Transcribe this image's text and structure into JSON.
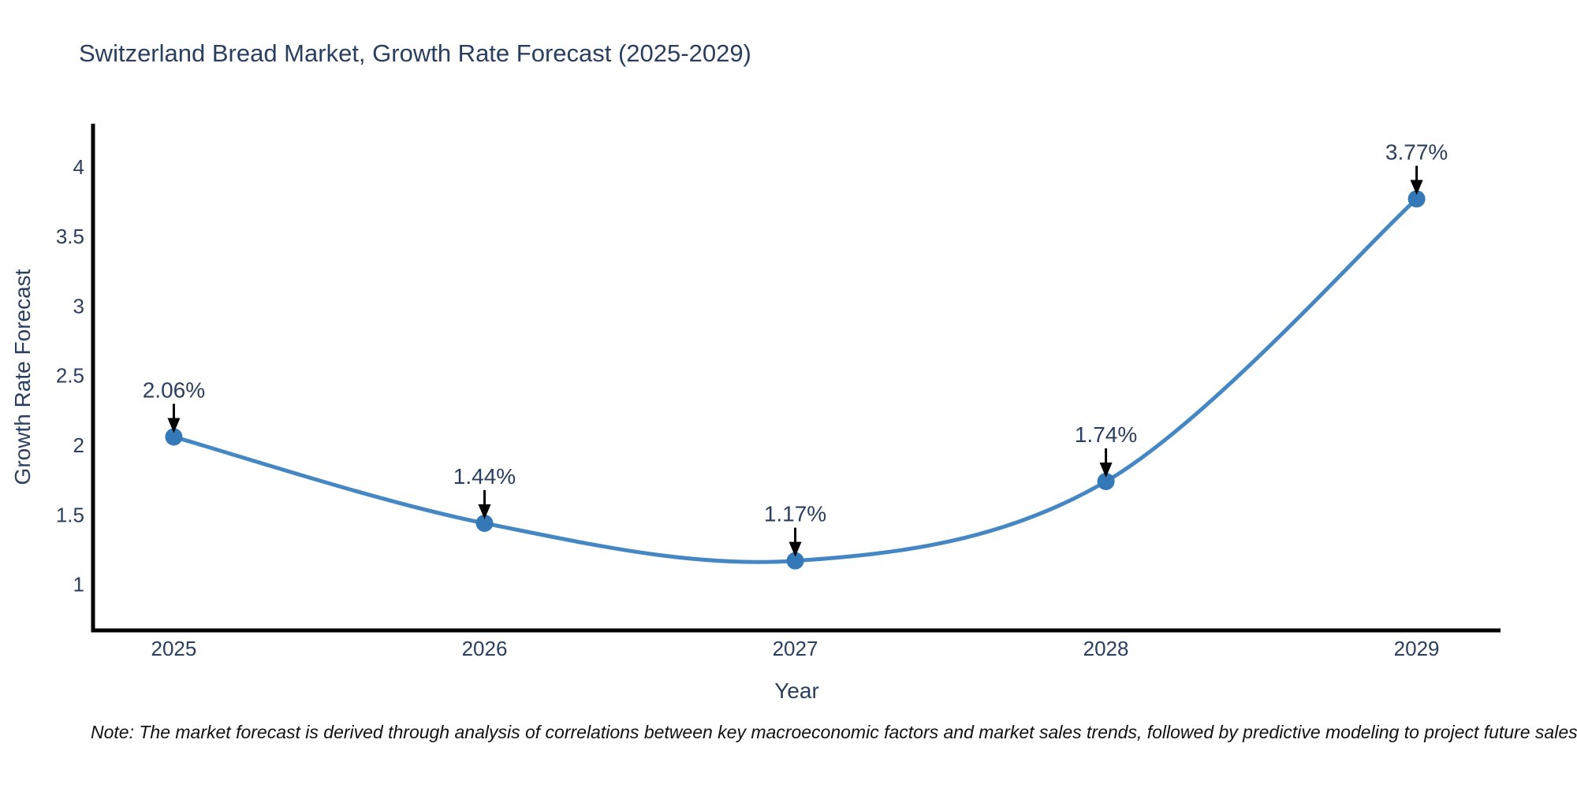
{
  "chart_data": {
    "type": "line",
    "title": "Switzerland Bread Market, Growth Rate Forecast (2025-2029)",
    "xlabel": "Year",
    "ylabel": "Growth Rate Forecast",
    "x": [
      2025,
      2026,
      2027,
      2028,
      2029
    ],
    "series": [
      {
        "name": "Growth Rate Forecast",
        "values": [
          2.06,
          1.44,
          1.17,
          1.74,
          3.77
        ],
        "point_labels": [
          "2.06%",
          "1.44%",
          "1.17%",
          "1.74%",
          "3.77%"
        ]
      }
    ],
    "y_ticks": [
      1,
      1.5,
      2,
      2.5,
      3,
      3.5,
      4
    ],
    "ylim": [
      0.67,
      4.31
    ],
    "xlim": [
      2024.74,
      2029.27
    ],
    "grid": false,
    "legend_position": "none",
    "line_shape": "spline",
    "annotations_have_arrows": true,
    "colors": {
      "line": "#4587c3",
      "marker": "#3478b8",
      "axis": "#000000",
      "text": "#2a3f5f",
      "arrow": "#000000",
      "background": "#ffffff"
    },
    "note": "Note: The market forecast is derived through analysis of correlations between key macroeconomic factors and market sales trends, followed by predictive modeling to project future sales"
  }
}
